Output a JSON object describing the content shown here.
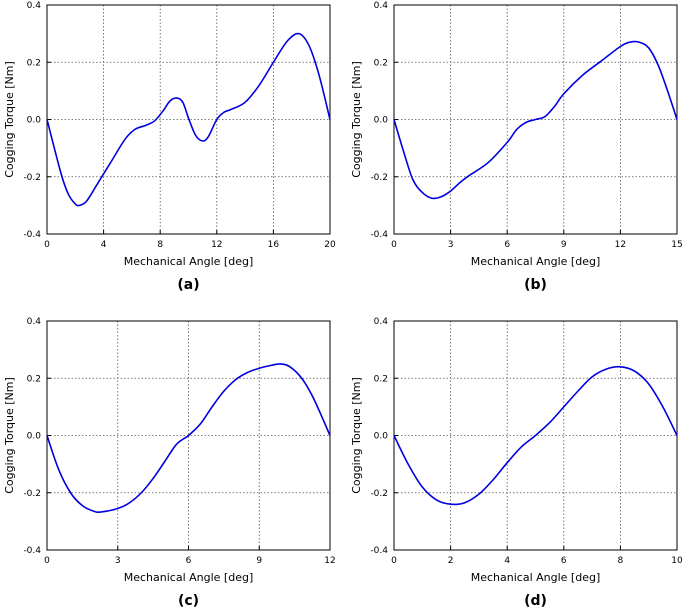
{
  "chart_data": [
    {
      "type": "line",
      "panel_label": "(a)",
      "xlabel": "Mechanical Angle [deg]",
      "ylabel": "Cogging Torque [Nm]",
      "xlim": [
        0,
        20
      ],
      "ylim": [
        -0.4,
        0.4
      ],
      "xticks": [
        "0",
        "4",
        "8",
        "12",
        "16",
        "20"
      ],
      "yticks": [
        "-0.4",
        "-0.2",
        "0.0",
        "0.2",
        "0.4"
      ],
      "grid": true,
      "line_color": "#0000e0",
      "x": [
        0,
        1,
        1.5,
        2,
        2.3,
        2.8,
        3.5,
        4.5,
        5.5,
        6.2,
        7,
        7.6,
        8.2,
        8.7,
        9.2,
        9.6,
        10,
        10.5,
        11,
        11.4,
        12,
        12.5,
        13,
        14,
        15,
        16,
        17,
        17.8,
        18.5,
        19.2,
        20
      ],
      "y": [
        0.0,
        -0.19,
        -0.26,
        -0.295,
        -0.3,
        -0.285,
        -0.23,
        -0.15,
        -0.07,
        -0.035,
        -0.02,
        -0.005,
        0.03,
        0.065,
        0.075,
        0.06,
        0.005,
        -0.055,
        -0.075,
        -0.06,
        0.0,
        0.025,
        0.035,
        0.06,
        0.12,
        0.2,
        0.275,
        0.3,
        0.26,
        0.16,
        0.0
      ]
    },
    {
      "type": "line",
      "panel_label": "(b)",
      "xlabel": "Mechanical Angle [deg]",
      "ylabel": "Cogging Torque [Nm]",
      "xlim": [
        0,
        15
      ],
      "ylim": [
        -0.4,
        0.4
      ],
      "xticks": [
        "0",
        "3",
        "6",
        "9",
        "12",
        "15"
      ],
      "yticks": [
        "-0.4",
        "-0.2",
        "0.0",
        "0.2",
        "0.4"
      ],
      "grid": true,
      "line_color": "#0000e0",
      "x": [
        0,
        0.5,
        1,
        1.5,
        2,
        2.5,
        3,
        3.5,
        4,
        5,
        6,
        6.5,
        7,
        7.5,
        8,
        8.5,
        9,
        10,
        11,
        12,
        12.5,
        13,
        13.5,
        14,
        14.5,
        15
      ],
      "y": [
        0.0,
        -0.11,
        -0.21,
        -0.255,
        -0.275,
        -0.27,
        -0.25,
        -0.22,
        -0.195,
        -0.15,
        -0.08,
        -0.035,
        -0.01,
        0.0,
        0.01,
        0.045,
        0.09,
        0.155,
        0.205,
        0.255,
        0.27,
        0.27,
        0.25,
        0.19,
        0.1,
        0.0
      ]
    },
    {
      "type": "line",
      "panel_label": "(c)",
      "xlabel": "Mechanical Angle [deg]",
      "ylabel": "Cogging Torque [Nm]",
      "xlim": [
        0,
        12
      ],
      "ylim": [
        -0.4,
        0.4
      ],
      "xticks": [
        "0",
        "3",
        "6",
        "9",
        "12"
      ],
      "yticks": [
        "-0.4",
        "-0.2",
        "0.0",
        "0.2",
        "0.4"
      ],
      "grid": true,
      "line_color": "#0000e0",
      "x": [
        0,
        0.5,
        1,
        1.5,
        2,
        2.3,
        3,
        3.5,
        4,
        4.5,
        5,
        5.5,
        6,
        6.5,
        7,
        7.5,
        8,
        8.5,
        9,
        9.5,
        9.9,
        10.3,
        10.8,
        11.3,
        12
      ],
      "y": [
        0.0,
        -0.12,
        -0.2,
        -0.245,
        -0.265,
        -0.267,
        -0.255,
        -0.235,
        -0.2,
        -0.15,
        -0.09,
        -0.03,
        0.0,
        0.04,
        0.1,
        0.155,
        0.195,
        0.22,
        0.235,
        0.245,
        0.25,
        0.24,
        0.2,
        0.13,
        0.0
      ]
    },
    {
      "type": "line",
      "panel_label": "(d)",
      "xlabel": "Mechanical Angle [deg]",
      "ylabel": "Cogging Torque [Nm]",
      "xlim": [
        0,
        10
      ],
      "ylim": [
        -0.4,
        0.4
      ],
      "xticks": [
        "0",
        "2",
        "4",
        "6",
        "8",
        "10"
      ],
      "yticks": [
        "-0.4",
        "-0.2",
        "0.0",
        "0.2",
        "0.4"
      ],
      "grid": true,
      "line_color": "#0000e0",
      "x": [
        0,
        0.5,
        1,
        1.5,
        2,
        2.5,
        3,
        3.5,
        4,
        4.5,
        5,
        5.5,
        6,
        6.5,
        7,
        7.5,
        8,
        8.5,
        9,
        9.5,
        10
      ],
      "y": [
        0.0,
        -0.1,
        -0.18,
        -0.225,
        -0.24,
        -0.235,
        -0.205,
        -0.155,
        -0.095,
        -0.04,
        0.0,
        0.045,
        0.1,
        0.155,
        0.205,
        0.232,
        0.24,
        0.225,
        0.18,
        0.1,
        0.0
      ]
    }
  ]
}
